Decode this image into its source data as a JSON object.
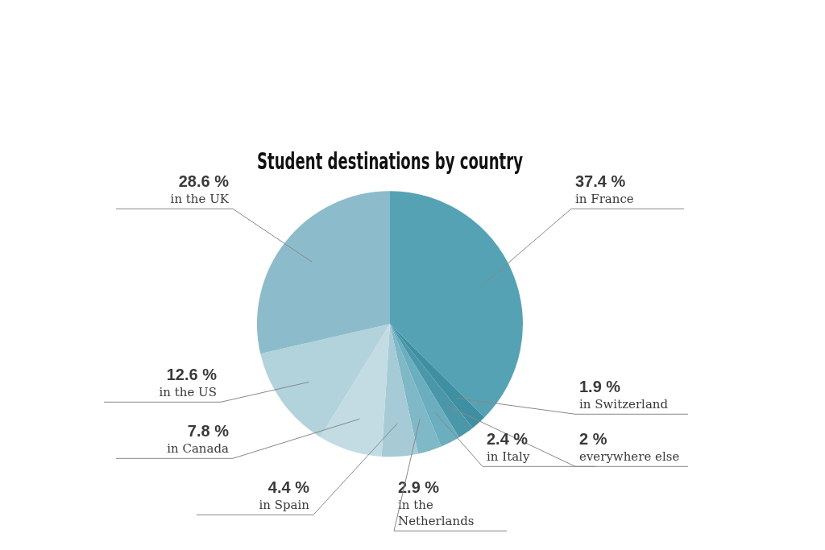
{
  "chart_data": {
    "type": "pie",
    "title": "Student destinations by country",
    "categories": [
      "in France",
      "in Switzerland",
      "everywhere else",
      "in Italy",
      "in the Netherlands",
      "in Spain",
      "in Canada",
      "in the US",
      "in the UK"
    ],
    "values": [
      37.4,
      1.9,
      2,
      2.4,
      2.9,
      4.4,
      7.8,
      12.6,
      28.6
    ],
    "value_labels": [
      "37.4 %",
      "1.9 %",
      "2 %",
      "2.4 %",
      "2.9 %",
      "4.4 %",
      "7.8 %",
      "12.6 %",
      "28.6 %"
    ],
    "colors": [
      "#56a2b5",
      "#3f8fa3",
      "#4a97aa",
      "#6aaebf",
      "#7fb8c7",
      "#a6cbd6",
      "#c3dce4",
      "#b2d2dc",
      "#8cbccb"
    ],
    "legend": false
  }
}
